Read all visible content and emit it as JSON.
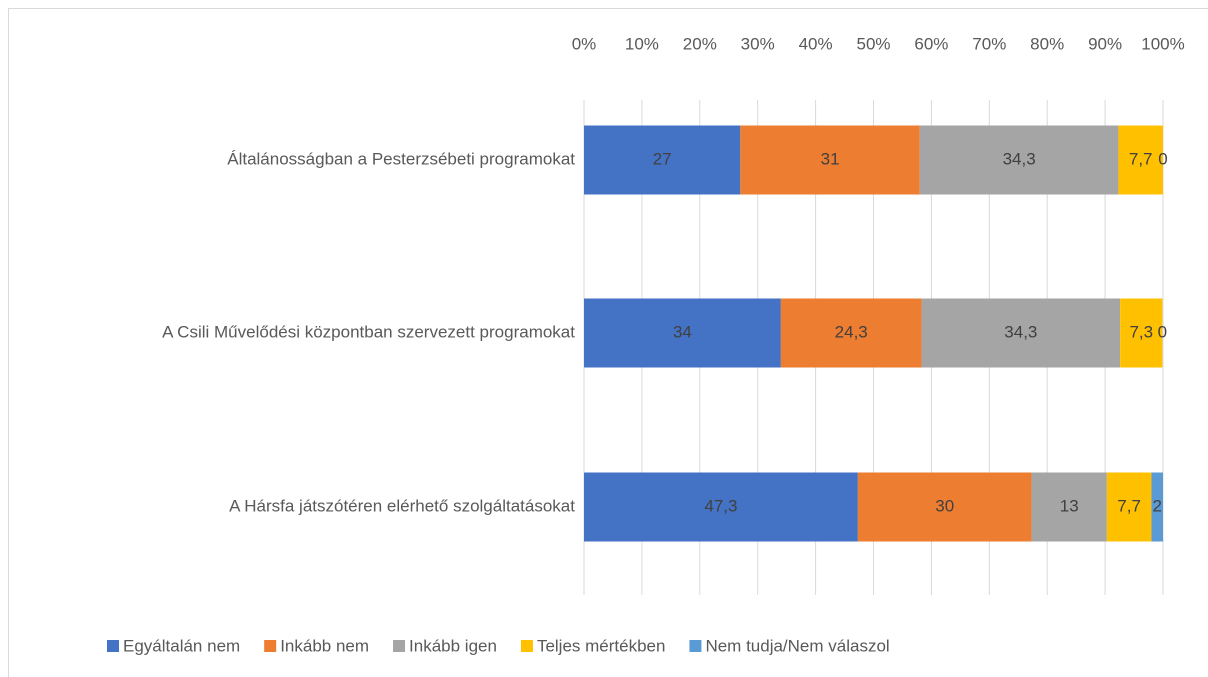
{
  "chart_data": {
    "type": "stacked_bar_horizontal",
    "categories": [
      "Általánosságban a Pesterzsébeti programokat",
      "A Csili Művelődési központban szervezett programokat",
      "A Hársfa játszótéren elérhető szolgáltatásokat"
    ],
    "series": [
      {
        "name": "Egyáltalán nem",
        "color": "#4472c4",
        "values": [
          27,
          34,
          47.3
        ],
        "value_labels": [
          "27",
          "34",
          "47,3"
        ]
      },
      {
        "name": "Inkább nem",
        "color": "#ed7d31",
        "values": [
          31,
          24.3,
          30
        ],
        "value_labels": [
          "31",
          "24,3",
          "30"
        ]
      },
      {
        "name": "Inkább igen",
        "color": "#a5a5a5",
        "values": [
          34.3,
          34.3,
          13
        ],
        "value_labels": [
          "34,3",
          "34,3",
          "13"
        ]
      },
      {
        "name": "Teljes mértékben",
        "color": "#ffc000",
        "values": [
          7.7,
          7.3,
          7.7
        ],
        "value_labels": [
          "7,7",
          "7,3",
          "7,7"
        ]
      },
      {
        "name": "Nem tudja/Nem válaszol",
        "color": "#5b9bd5",
        "values": [
          0,
          0,
          2
        ],
        "value_labels": [
          "0",
          "0",
          "2"
        ]
      }
    ],
    "xlim": [
      0,
      100
    ],
    "xticks": [
      {
        "value": 0,
        "label": "0%"
      },
      {
        "value": 10,
        "label": "10%"
      },
      {
        "value": 20,
        "label": "20%"
      },
      {
        "value": 30,
        "label": "30%"
      },
      {
        "value": 40,
        "label": "40%"
      },
      {
        "value": 50,
        "label": "50%"
      },
      {
        "value": 60,
        "label": "60%"
      },
      {
        "value": 70,
        "label": "70%"
      },
      {
        "value": 80,
        "label": "80%"
      },
      {
        "value": 90,
        "label": "90%"
      },
      {
        "value": 100,
        "label": "100%"
      }
    ],
    "grid": true,
    "legend": "bottom"
  }
}
